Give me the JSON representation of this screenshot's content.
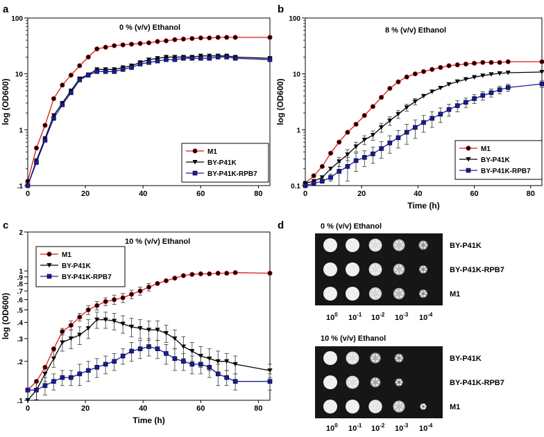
{
  "figure": {
    "panel_a": {
      "label": "a"
    },
    "panel_b": {
      "label": "b"
    },
    "panel_c": {
      "label": "c"
    },
    "panel_d": {
      "label": "d"
    }
  },
  "colors": {
    "M1": "#d81818",
    "BY-P41K": "#000000",
    "BY-P41K-RPB7": "#1a1a9e"
  },
  "chart_data": [
    {
      "panel": "a",
      "type": "line",
      "title": "0 % (v/v) Ethanol",
      "xlabel": "",
      "ylabel": "log (OD600)",
      "yscale": "log",
      "xlim": [
        0,
        84
      ],
      "ylim": [
        0.1,
        100
      ],
      "xticks": [
        0,
        20,
        40,
        60,
        80
      ],
      "yticks": [
        {
          "v": 0.1,
          "label": ".1"
        },
        {
          "v": 1,
          "label": "1"
        },
        {
          "v": 10,
          "label": "10"
        },
        {
          "v": 100,
          "label": "100"
        }
      ],
      "legend_position": "bottom-right",
      "series": [
        {
          "name": "M1",
          "marker": "circle",
          "x": [
            0,
            3,
            6,
            9,
            12,
            15,
            18,
            21,
            24,
            27,
            30,
            33,
            36,
            39,
            42,
            45,
            48,
            51,
            54,
            57,
            60,
            63,
            66,
            69,
            72,
            84
          ],
          "y": [
            0.12,
            0.47,
            1.2,
            3.6,
            6.3,
            9.5,
            14,
            20,
            28,
            30,
            32,
            33,
            34,
            35,
            36,
            38,
            39,
            41,
            42,
            43,
            44,
            44,
            45,
            45,
            45,
            45
          ]
        },
        {
          "name": "BY-P41K",
          "marker": "triangle-down",
          "x": [
            0,
            3,
            6,
            9,
            12,
            15,
            18,
            21,
            24,
            27,
            30,
            33,
            36,
            39,
            42,
            45,
            48,
            51,
            54,
            57,
            60,
            63,
            66,
            69,
            72,
            84
          ],
          "y": [
            0.1,
            0.28,
            0.7,
            1.8,
            3.0,
            5.0,
            8.2,
            9.7,
            12,
            12,
            12,
            13,
            14,
            16,
            18,
            19,
            20,
            20,
            20,
            20,
            21,
            21,
            21,
            21,
            20,
            19
          ]
        },
        {
          "name": "BY-P41K-RPB7",
          "marker": "square",
          "x": [
            0,
            3,
            6,
            9,
            12,
            15,
            18,
            21,
            24,
            27,
            30,
            33,
            36,
            39,
            42,
            45,
            48,
            51,
            54,
            57,
            60,
            63,
            66,
            69,
            72,
            84
          ],
          "y": [
            0.1,
            0.26,
            0.65,
            1.6,
            2.8,
            4.6,
            7.8,
            9.5,
            11,
            11,
            11,
            12,
            13,
            15,
            16,
            17,
            18,
            18,
            19,
            19,
            19,
            19,
            20,
            20,
            19,
            18
          ]
        }
      ]
    },
    {
      "panel": "b",
      "type": "line",
      "title": "8 % (v/v) Ethanol",
      "xlabel": "Time (h)",
      "ylabel": "log (OD600)",
      "yscale": "log",
      "xlim": [
        0,
        84
      ],
      "ylim": [
        0.1,
        100
      ],
      "xticks": [
        0,
        20,
        40,
        60,
        80
      ],
      "yticks": [
        {
          "v": 0.1,
          "label": "0.1"
        },
        {
          "v": 1,
          "label": "1"
        },
        {
          "v": 10,
          "label": "10"
        },
        {
          "v": 100,
          "label": "100"
        }
      ],
      "legend_position": "bottom-right",
      "series": [
        {
          "name": "M1",
          "marker": "circle",
          "x": [
            0,
            3,
            6,
            9,
            12,
            15,
            18,
            21,
            24,
            27,
            30,
            33,
            36,
            39,
            42,
            45,
            48,
            51,
            54,
            57,
            60,
            63,
            66,
            69,
            72,
            84
          ],
          "y": [
            0.11,
            0.15,
            0.22,
            0.38,
            0.6,
            0.9,
            1.25,
            1.8,
            2.6,
            3.8,
            5.5,
            7.2,
            8.8,
            10,
            11,
            12,
            13,
            14,
            14.5,
            15,
            15.5,
            16,
            16,
            16,
            16.5,
            16.5
          ],
          "err": [
            0,
            0,
            0,
            0,
            0,
            0,
            0,
            0,
            0,
            0,
            0,
            0,
            0,
            0,
            0,
            0,
            0,
            0,
            0,
            0,
            0,
            0,
            0,
            0,
            0,
            0
          ]
        },
        {
          "name": "BY-P41K",
          "marker": "triangle-down",
          "x": [
            0,
            3,
            6,
            9,
            12,
            15,
            18,
            21,
            24,
            27,
            30,
            33,
            36,
            39,
            42,
            45,
            48,
            51,
            54,
            57,
            60,
            63,
            66,
            69,
            72,
            84
          ],
          "y": [
            0.11,
            0.12,
            0.14,
            0.2,
            0.27,
            0.36,
            0.5,
            0.66,
            0.8,
            1.1,
            1.45,
            1.9,
            2.5,
            3.2,
            4,
            4.8,
            5.6,
            6.5,
            7.3,
            8,
            8.7,
            9.3,
            9.8,
            10.2,
            10.5,
            10.8
          ],
          "err": [
            0,
            0,
            0,
            0,
            0.05,
            0.08,
            0.1,
            0.12,
            0.15,
            0.2,
            0.25,
            0.3,
            0.35,
            0.4,
            0,
            0,
            0,
            0,
            0,
            0,
            0,
            0,
            0,
            0,
            0,
            0
          ]
        },
        {
          "name": "BY-P41K-RPB7",
          "marker": "square",
          "x": [
            0,
            3,
            6,
            9,
            12,
            15,
            18,
            21,
            24,
            27,
            30,
            33,
            36,
            39,
            42,
            45,
            48,
            51,
            54,
            57,
            60,
            63,
            66,
            69,
            72,
            84
          ],
          "y": [
            0.1,
            0.11,
            0.12,
            0.14,
            0.18,
            0.22,
            0.28,
            0.32,
            0.37,
            0.46,
            0.58,
            0.72,
            0.9,
            1.1,
            1.35,
            1.6,
            1.9,
            2.3,
            2.7,
            3.1,
            3.6,
            4.1,
            4.6,
            5.2,
            5.7,
            6.6
          ],
          "err": [
            0,
            0,
            0,
            0.02,
            0.08,
            0.1,
            0.1,
            0.1,
            0.12,
            0.15,
            0.2,
            0.25,
            0.35,
            0.4,
            0.45,
            0.5,
            0.55,
            0.55,
            0.6,
            0.6,
            0.65,
            0.7,
            0.75,
            0.8,
            0.85,
            0.9
          ]
        }
      ]
    },
    {
      "panel": "c",
      "type": "line",
      "title": "10 % (v/v) Ethanol",
      "xlabel": "Time (h)",
      "ylabel": "log (OD600)",
      "yscale": "log",
      "xlim": [
        0,
        84
      ],
      "ylim": [
        0.1,
        2
      ],
      "xticks": [
        0,
        20,
        40,
        60,
        80
      ],
      "yticks": [
        {
          "v": 0.1,
          "label": ".1"
        },
        {
          "v": 0.2,
          "label": ".2"
        },
        {
          "v": 0.3,
          "label": ".3"
        },
        {
          "v": 0.4,
          "label": ".4"
        },
        {
          "v": 0.5,
          "label": ".5"
        },
        {
          "v": 0.6,
          "label": ".6"
        },
        {
          "v": 0.7,
          "label": ".7"
        },
        {
          "v": 0.8,
          "label": ".8"
        },
        {
          "v": 0.9,
          "label": ".9"
        },
        {
          "v": 1,
          "label": "1"
        },
        {
          "v": 2,
          "label": "2"
        }
      ],
      "legend_position": "top-left",
      "series": [
        {
          "name": "M1",
          "marker": "circle",
          "x": [
            0,
            3,
            6,
            9,
            12,
            15,
            18,
            21,
            24,
            27,
            30,
            33,
            36,
            39,
            42,
            45,
            48,
            51,
            54,
            57,
            60,
            63,
            66,
            69,
            72,
            84
          ],
          "y": [
            0.12,
            0.14,
            0.18,
            0.25,
            0.34,
            0.38,
            0.44,
            0.5,
            0.54,
            0.58,
            0.6,
            0.62,
            0.66,
            0.7,
            0.75,
            0.8,
            0.84,
            0.88,
            0.92,
            0.94,
            0.95,
            0.95,
            0.96,
            0.96,
            0.97,
            0.96
          ],
          "err": [
            0,
            0,
            0,
            0,
            0.02,
            0.03,
            0.03,
            0.04,
            0.04,
            0.04,
            0.05,
            0.05,
            0.05,
            0.05,
            0.05,
            0,
            0,
            0,
            0,
            0,
            0,
            0,
            0,
            0,
            0,
            0
          ]
        },
        {
          "name": "BY-P41K",
          "marker": "triangle-down",
          "x": [
            0,
            3,
            6,
            9,
            12,
            15,
            18,
            21,
            24,
            27,
            30,
            33,
            36,
            39,
            42,
            45,
            48,
            51,
            54,
            57,
            60,
            63,
            66,
            69,
            72,
            84
          ],
          "y": [
            0.1,
            0.12,
            0.16,
            0.21,
            0.28,
            0.3,
            0.32,
            0.36,
            0.42,
            0.42,
            0.41,
            0.39,
            0.37,
            0.36,
            0.35,
            0.35,
            0.33,
            0.3,
            0.26,
            0.24,
            0.22,
            0.21,
            0.2,
            0.2,
            0.19,
            0.17
          ],
          "err": [
            0,
            0.02,
            0.02,
            0.03,
            0.04,
            0.05,
            0.05,
            0.06,
            0.06,
            0.06,
            0.06,
            0.06,
            0.06,
            0.06,
            0.06,
            0.06,
            0.05,
            0.05,
            0.05,
            0.04,
            0.04,
            0.04,
            0.04,
            0.03,
            0.03,
            0.02
          ]
        },
        {
          "name": "BY-P41K-RPB7",
          "marker": "square",
          "x": [
            0,
            3,
            6,
            9,
            12,
            15,
            18,
            21,
            24,
            27,
            30,
            33,
            36,
            39,
            42,
            45,
            48,
            51,
            54,
            57,
            60,
            63,
            66,
            69,
            72,
            84
          ],
          "y": [
            0.12,
            0.12,
            0.13,
            0.14,
            0.15,
            0.15,
            0.16,
            0.17,
            0.18,
            0.19,
            0.2,
            0.22,
            0.24,
            0.25,
            0.26,
            0.25,
            0.23,
            0.21,
            0.2,
            0.19,
            0.19,
            0.18,
            0.16,
            0.15,
            0.14,
            0.14
          ],
          "err": [
            0,
            0.02,
            0.02,
            0.02,
            0.02,
            0.02,
            0.03,
            0.03,
            0.03,
            0.03,
            0.03,
            0.03,
            0.04,
            0.04,
            0.04,
            0.04,
            0.04,
            0.04,
            0.03,
            0.03,
            0.03,
            0.03,
            0.03,
            0.02,
            0.02,
            0.02
          ]
        }
      ]
    }
  ],
  "spot_assay": {
    "plates": [
      {
        "title": "0 % (v/v) Ethanol",
        "rows": [
          "BY-P41K",
          "BY-P41K-RPB7",
          "M1"
        ],
        "growth": [
          [
            1,
            1,
            0.9,
            0.75,
            0.45
          ],
          [
            1,
            1,
            0.9,
            0.7,
            0.35
          ],
          [
            1,
            1,
            0.85,
            0.7,
            0.35
          ]
        ]
      },
      {
        "title": "10 % (v/v) Ethanol",
        "rows": [
          "BY-P41K",
          "BY-P41K-RPB7",
          "M1"
        ],
        "growth": [
          [
            1,
            0.9,
            0.6,
            0.4,
            0
          ],
          [
            1,
            0.9,
            0.55,
            0.3,
            0
          ],
          [
            1,
            1,
            0.95,
            0.75,
            0.15
          ]
        ]
      }
    ],
    "dilutions": [
      {
        "base": "10",
        "exp": "0"
      },
      {
        "base": "10",
        "exp": "-1"
      },
      {
        "base": "10",
        "exp": "-2"
      },
      {
        "base": "10",
        "exp": "-3"
      },
      {
        "base": "10",
        "exp": "-4"
      }
    ]
  }
}
